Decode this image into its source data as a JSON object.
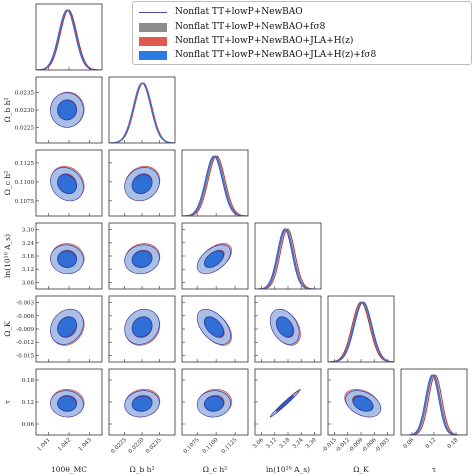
{
  "chart_data": {
    "type": "corner",
    "parameters": [
      {
        "label": "100θ_MC",
        "ticks": [
          "1.041",
          "1.042",
          "1.043"
        ],
        "range": [
          1.0404,
          1.0436
        ],
        "tick_values": [
          1.041,
          1.042,
          1.043
        ],
        "center": 1.0419,
        "sigma": 0.0004
      },
      {
        "label": "Ω_b h²",
        "ticks": [
          "0.0225",
          "0.0230",
          "0.0235"
        ],
        "range": [
          0.02205,
          0.02395
        ],
        "tick_values": [
          0.0225,
          0.023,
          0.0235
        ],
        "center": 0.023,
        "sigma": 0.00025
      },
      {
        "label": "Ω_c h²",
        "ticks": [
          "0.1075",
          "0.1100",
          "0.1125"
        ],
        "range": [
          0.1055,
          0.1142
        ],
        "tick_values": [
          0.1075,
          0.11,
          0.1125
        ],
        "center": 0.1097,
        "sigma": 0.0011
      },
      {
        "label": "ln(10¹⁰ A_s)",
        "ticks": [
          "3.06",
          "3.12",
          "3.18",
          "3.24",
          "3.30"
        ],
        "range": [
          3.03,
          3.33
        ],
        "tick_values": [
          3.06,
          3.12,
          3.18,
          3.24,
          3.3
        ],
        "center": 3.165,
        "sigma": 0.033
      },
      {
        "label": "Ω_K",
        "ticks": [
          "-0.015",
          "-0.012",
          "-0.009",
          "-0.006",
          "-0.003"
        ],
        "range": [
          -0.0165,
          -0.0015
        ],
        "tick_values": [
          -0.015,
          -0.012,
          -0.009,
          -0.006,
          -0.003
        ],
        "center": -0.0085,
        "sigma": 0.002
      },
      {
        "label": "τ",
        "ticks": [
          "0.06",
          "0.12",
          "0.18"
        ],
        "range": [
          0.03,
          0.21
        ],
        "tick_values": [
          0.06,
          0.12,
          0.18
        ],
        "center": 0.115,
        "sigma": 0.018
      }
    ],
    "series": [
      {
        "name": "Nonflat TT+lowP+NewBAO",
        "style": "line",
        "color": "#4a4ab8",
        "shift": 0
      },
      {
        "name": "Nonflat TT+lowP+NewBAO+f σ8",
        "style": "filled",
        "color": "#8c8c8c",
        "shift": 0.15
      },
      {
        "name": "Nonflat TT+lowP+NewBAO+JLA+H(z)",
        "style": "filled",
        "color": "#e05a50",
        "shift": 0.3
      },
      {
        "name": "Nonflat TT+lowP+NewBAO+JLA+H(z)+f σ8",
        "style": "filled",
        "color": "#2a7ae2",
        "shift": 0.1
      }
    ],
    "correlations": [
      [
        1,
        0,
        -0.2,
        -0.05,
        0.2,
        -0.05
      ],
      [
        0,
        1,
        0.15,
        0.1,
        0.15,
        0.1
      ],
      [
        -0.2,
        0.15,
        1,
        0.5,
        -0.5,
        0.05
      ],
      [
        -0.05,
        0.1,
        0.5,
        1,
        -0.35,
        0.985
      ],
      [
        0.2,
        0.15,
        -0.5,
        -0.35,
        1,
        -0.35
      ],
      [
        -0.05,
        0.1,
        0.05,
        0.985,
        -0.35,
        1
      ]
    ]
  },
  "legend": {
    "title": "",
    "entries": [
      "Nonflat TT+lowP+NewBAO",
      "Nonflat TT+lowP+NewBAO+fσ8",
      "Nonflat TT+lowP+NewBAO+JLA+H(z)",
      "Nonflat TT+lowP+NewBAO+JLA+H(z)+fσ8"
    ]
  },
  "colors": {
    "line_series": "#4a4ab8",
    "gray_series": "#8c8c8c",
    "red_series": "#e05a50",
    "blue_series": "#2a7ae2",
    "fill_outer": "#a9bfe6",
    "fill_inner": "#2f6fd6"
  }
}
